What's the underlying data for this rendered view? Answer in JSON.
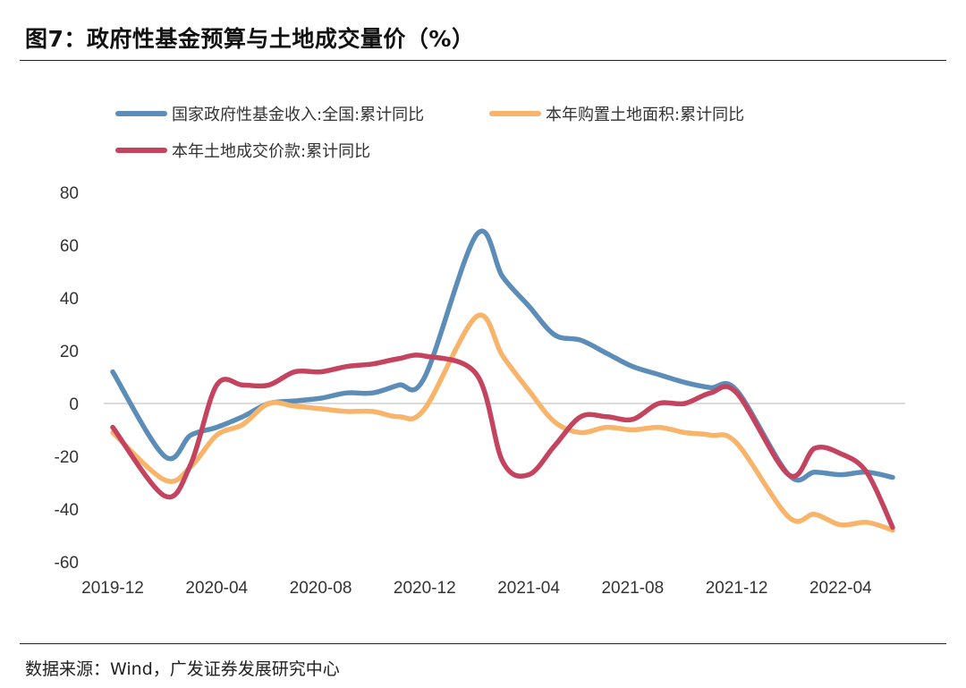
{
  "header": {
    "title": "图7：政府性基金预算与土地成交量价（%）"
  },
  "footer": {
    "source": "数据来源：Wind，广发证券发展研究中心"
  },
  "chart_data": {
    "type": "line",
    "title": "",
    "xlabel": "",
    "ylabel": "",
    "ylim": [
      -60,
      80
    ],
    "yticks": [
      80,
      60,
      40,
      20,
      0,
      -20,
      -40,
      -60
    ],
    "xticks": [
      "2019-12",
      "2020-04",
      "2020-08",
      "2020-12",
      "2021-04",
      "2021-08",
      "2021-12",
      "2022-04"
    ],
    "legend_position": "top",
    "grid": "horizontal zero line only",
    "x": [
      "2019-12",
      "2020-02",
      "2020-03",
      "2020-04",
      "2020-05",
      "2020-06",
      "2020-07",
      "2020-08",
      "2020-09",
      "2020-10",
      "2020-11",
      "2020-12",
      "2021-02",
      "2021-03",
      "2021-04",
      "2021-05",
      "2021-06",
      "2021-07",
      "2021-08",
      "2021-09",
      "2021-10",
      "2021-11",
      "2021-12",
      "2022-02",
      "2022-03",
      "2022-04",
      "2022-05",
      "2022-06"
    ],
    "series": [
      {
        "name": "国家政府性基金收入:全国:累计同比",
        "color": "#5b8db8",
        "values": [
          12,
          -20,
          -12,
          -9,
          -5,
          0,
          1,
          2,
          4,
          4,
          7,
          10,
          64,
          48,
          37,
          26,
          24,
          19,
          14,
          11,
          8,
          6,
          5,
          -27,
          -26,
          -27,
          -26,
          -28
        ]
      },
      {
        "name": "本年购置土地面积:累计同比",
        "color": "#f7b46a",
        "values": [
          -11,
          -29,
          -24,
          -12,
          -8,
          0,
          -1,
          -2,
          -3,
          -3,
          -5,
          -2,
          33,
          18,
          5,
          -7,
          -11,
          -9,
          -10,
          -9,
          -11,
          -12,
          -15,
          -43,
          -42,
          -46,
          -45,
          -48
        ]
      },
      {
        "name": "本年土地成交价款:累计同比",
        "color": "#c4445f",
        "values": [
          -9,
          -35,
          -23,
          7,
          7,
          7,
          12,
          12,
          14,
          15,
          17,
          18,
          11,
          -22,
          -27,
          -16,
          -5,
          -5,
          -6,
          0,
          0,
          4,
          4,
          -27,
          -17,
          -19,
          -26,
          -47
        ]
      }
    ]
  }
}
